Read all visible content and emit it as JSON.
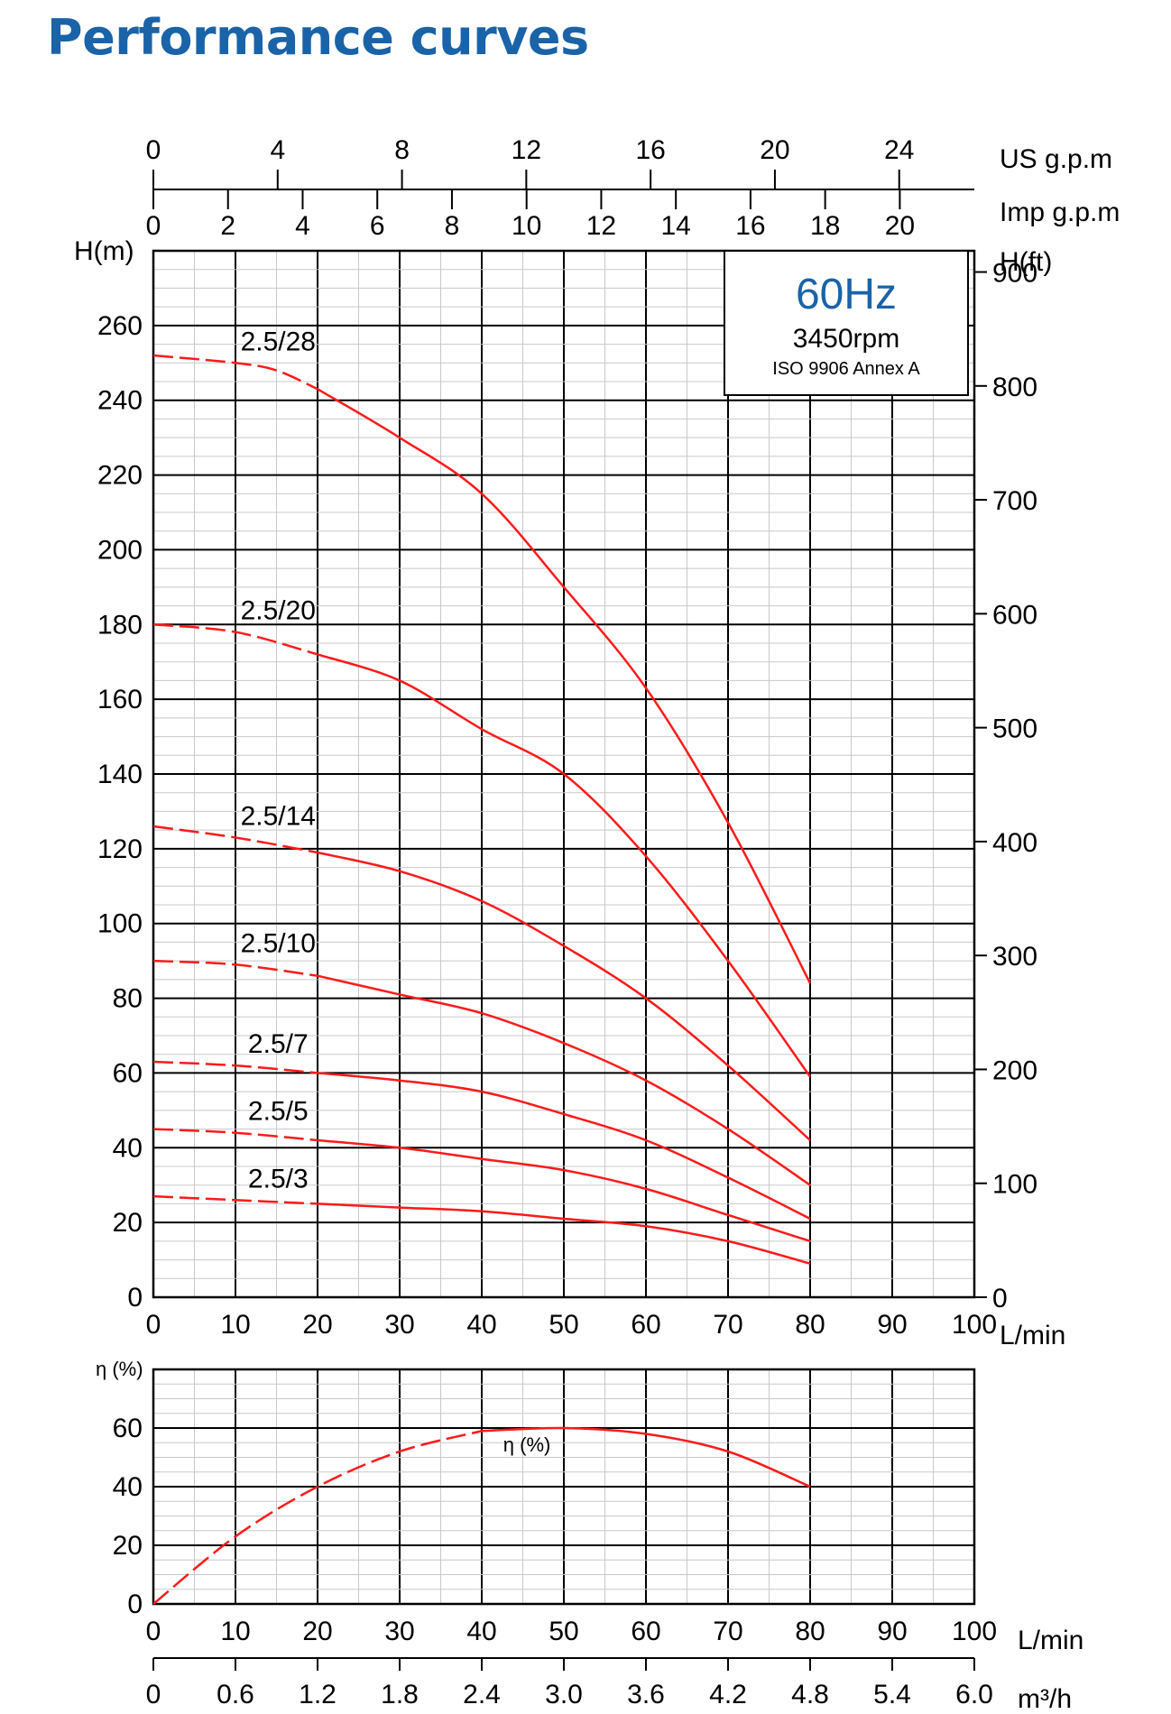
{
  "title": "Performance curves",
  "info_box": {
    "freq": "60Hz",
    "rpm": "3450rpm",
    "standard": "ISO 9906 Annex A"
  },
  "colors": {
    "title": "#1a63a8",
    "curve": "#ff1a1a",
    "freq": "#1a63a8"
  },
  "units": {
    "us_gpm": "US g.p.m",
    "imp_gpm": "Imp g.p.m",
    "head_m": "H(m)",
    "head_ft": "H(ft)",
    "flow_lmin": "L/min",
    "flow_lmin_eff": "L/min",
    "flow_m3h": "m³/h",
    "eff": "η (%)"
  },
  "chart_data": [
    {
      "type": "line",
      "title": "",
      "xlabel": "L/min",
      "ylabel": "H(m)",
      "y2label": "H(ft)",
      "xlim": [
        0,
        100
      ],
      "ylim": [
        0,
        280
      ],
      "grid": true,
      "x_ticks": [
        "0",
        "10",
        "20",
        "30",
        "40",
        "50",
        "60",
        "70",
        "80",
        "90",
        "100"
      ],
      "y_ticks": [
        "0",
        "20",
        "40",
        "60",
        "80",
        "100",
        "120",
        "140",
        "160",
        "180",
        "200",
        "220",
        "240",
        "260"
      ],
      "y2_ticks": [
        {
          "value": 0,
          "label": "0"
        },
        {
          "value": 100,
          "label": "100"
        },
        {
          "value": 200,
          "label": "200"
        },
        {
          "value": 300,
          "label": "300"
        },
        {
          "value": 400,
          "label": "400"
        },
        {
          "value": 500,
          "label": "500"
        },
        {
          "value": 600,
          "label": "600"
        },
        {
          "value": 700,
          "label": "700"
        },
        {
          "value": 800,
          "label": "800"
        },
        {
          "value": 900,
          "label": "900"
        }
      ],
      "us_gpm_ticks": [
        {
          "value": 0,
          "label": "0"
        },
        {
          "value": 4,
          "label": "4"
        },
        {
          "value": 8,
          "label": "8"
        },
        {
          "value": 12,
          "label": "12"
        },
        {
          "value": 16,
          "label": "16"
        },
        {
          "value": 20,
          "label": "20"
        },
        {
          "value": 24,
          "label": "24"
        }
      ],
      "imp_gpm_ticks": [
        {
          "value": 0,
          "label": "0"
        },
        {
          "value": 2,
          "label": "2"
        },
        {
          "value": 4,
          "label": "4"
        },
        {
          "value": 6,
          "label": "6"
        },
        {
          "value": 8,
          "label": "8"
        },
        {
          "value": 10,
          "label": "10"
        },
        {
          "value": 12,
          "label": "12"
        },
        {
          "value": 14,
          "label": "14"
        },
        {
          "value": 16,
          "label": "16"
        },
        {
          "value": 18,
          "label": "18"
        },
        {
          "value": 20,
          "label": "20"
        }
      ],
      "series": [
        {
          "name": "2.5/28",
          "x": [
            0,
            10,
            15,
            20,
            30,
            40,
            50,
            60,
            70,
            80
          ],
          "y": [
            252,
            250,
            248,
            243,
            230,
            215,
            190,
            163,
            127,
            84
          ]
        },
        {
          "name": "2.5/20",
          "x": [
            0,
            10,
            20,
            30,
            40,
            50,
            60,
            70,
            80
          ],
          "y": [
            180,
            178,
            172,
            165,
            152,
            140,
            118,
            90,
            59
          ]
        },
        {
          "name": "2.5/14",
          "x": [
            0,
            10,
            20,
            30,
            40,
            50,
            60,
            70,
            80
          ],
          "y": [
            126,
            123,
            119,
            114,
            106,
            94,
            80,
            62,
            42
          ]
        },
        {
          "name": "2.5/10",
          "x": [
            0,
            10,
            20,
            30,
            40,
            50,
            60,
            70,
            80
          ],
          "y": [
            90,
            89,
            86,
            81,
            76,
            68,
            58,
            45,
            30
          ]
        },
        {
          "name": "2.5/7",
          "x": [
            0,
            10,
            20,
            30,
            40,
            50,
            60,
            70,
            80
          ],
          "y": [
            63,
            62,
            60,
            58,
            55,
            49,
            42,
            32,
            21
          ]
        },
        {
          "name": "2.5/5",
          "x": [
            0,
            10,
            20,
            30,
            40,
            50,
            60,
            70,
            80
          ],
          "y": [
            45,
            44,
            42,
            40,
            37,
            34,
            29,
            22,
            15
          ]
        },
        {
          "name": "2.5/3",
          "x": [
            0,
            10,
            20,
            30,
            40,
            50,
            60,
            70,
            80
          ],
          "y": [
            27,
            26,
            25,
            24,
            23,
            21,
            19,
            15,
            9
          ]
        }
      ]
    },
    {
      "type": "line",
      "title": "",
      "xlabel": "L/min",
      "x2label": "m³/h",
      "ylabel": "η (%)",
      "xlim": [
        0,
        100
      ],
      "ylim": [
        0,
        80
      ],
      "grid": true,
      "x_ticks": [
        "0",
        "10",
        "20",
        "30",
        "40",
        "50",
        "60",
        "70",
        "80",
        "90",
        "100"
      ],
      "x2_ticks": [
        "0",
        "0.6",
        "1.2",
        "1.8",
        "2.4",
        "3.0",
        "3.6",
        "4.2",
        "4.8",
        "5.4",
        "6.0"
      ],
      "y_ticks": [
        "0",
        "20",
        "40",
        "60"
      ],
      "series": [
        {
          "name": "η (%)",
          "x": [
            0,
            10,
            20,
            30,
            40,
            50,
            60,
            70,
            80
          ],
          "y": [
            0,
            23,
            40,
            52,
            59,
            60,
            58,
            52,
            40
          ]
        }
      ]
    }
  ]
}
